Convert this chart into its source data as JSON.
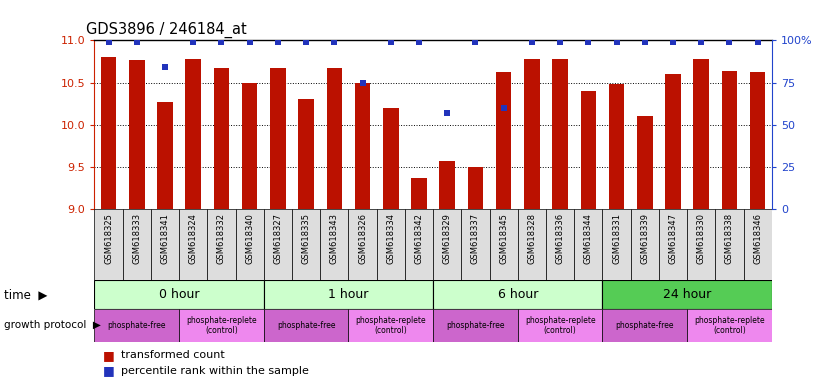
{
  "title": "GDS3896 / 246184_at",
  "samples": [
    "GSM618325",
    "GSM618333",
    "GSM618341",
    "GSM618324",
    "GSM618332",
    "GSM618340",
    "GSM618327",
    "GSM618335",
    "GSM618343",
    "GSM618326",
    "GSM618334",
    "GSM618342",
    "GSM618329",
    "GSM618337",
    "GSM618345",
    "GSM618328",
    "GSM618336",
    "GSM618344",
    "GSM618331",
    "GSM618339",
    "GSM618347",
    "GSM618330",
    "GSM618338",
    "GSM618346"
  ],
  "bar_values": [
    10.8,
    10.77,
    10.27,
    10.78,
    10.67,
    10.49,
    10.67,
    10.3,
    10.67,
    10.5,
    10.2,
    9.37,
    9.57,
    9.5,
    10.62,
    10.78,
    10.78,
    10.4,
    10.48,
    10.1,
    10.6,
    10.78,
    10.64,
    10.62
  ],
  "percentile_values": [
    99,
    99,
    84,
    99,
    99,
    99,
    99,
    99,
    99,
    75,
    99,
    99,
    57,
    99,
    60,
    99,
    99,
    99,
    99,
    99,
    99,
    99,
    99,
    99
  ],
  "ylim_left": [
    9.0,
    11.0
  ],
  "ylim_right": [
    0,
    100
  ],
  "yticks_left": [
    9.0,
    9.5,
    10.0,
    10.5,
    11.0
  ],
  "yticks_right": [
    0,
    25,
    50,
    75,
    100
  ],
  "ytick_right_labels": [
    "0",
    "25",
    "50",
    "75",
    "100%"
  ],
  "time_groups": [
    {
      "label": "0 hour",
      "start": 0,
      "end": 6,
      "color": "#ccffcc"
    },
    {
      "label": "1 hour",
      "start": 6,
      "end": 12,
      "color": "#ccffcc"
    },
    {
      "label": "6 hour",
      "start": 12,
      "end": 18,
      "color": "#ccffcc"
    },
    {
      "label": "24 hour",
      "start": 18,
      "end": 24,
      "color": "#55cc55"
    }
  ],
  "protocol_segments": [
    {
      "label": "phosphate-free",
      "start": 0,
      "end": 3,
      "color": "#cc66cc"
    },
    {
      "label": "phosphate-replete\n(control)",
      "start": 3,
      "end": 6,
      "color": "#ee88ee"
    },
    {
      "label": "phosphate-free",
      "start": 6,
      "end": 9,
      "color": "#cc66cc"
    },
    {
      "label": "phosphate-replete\n(control)",
      "start": 9,
      "end": 12,
      "color": "#ee88ee"
    },
    {
      "label": "phosphate-free",
      "start": 12,
      "end": 15,
      "color": "#cc66cc"
    },
    {
      "label": "phosphate-replete\n(control)",
      "start": 15,
      "end": 18,
      "color": "#ee88ee"
    },
    {
      "label": "phosphate-free",
      "start": 18,
      "end": 21,
      "color": "#cc66cc"
    },
    {
      "label": "phosphate-replete\n(control)",
      "start": 21,
      "end": 24,
      "color": "#ee88ee"
    }
  ],
  "bar_color": "#bb1100",
  "dot_color": "#2233bb",
  "bg_color": "#ffffff",
  "left_axis_color": "#cc2200",
  "right_axis_color": "#2244cc",
  "sample_label_bg": "#dddddd",
  "n_samples": 24,
  "group_boundaries": [
    0,
    6,
    12,
    18,
    24
  ]
}
